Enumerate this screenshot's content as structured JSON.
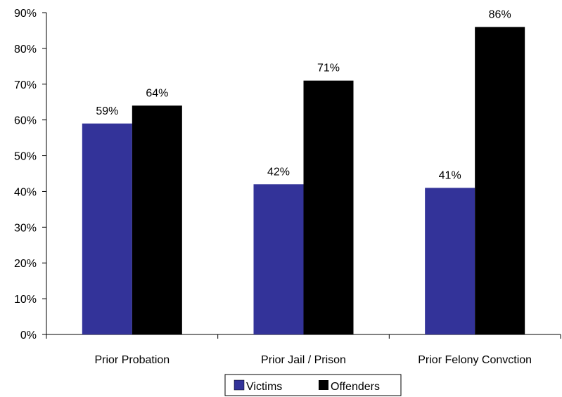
{
  "chart_data": {
    "type": "bar",
    "categories": [
      "Prior Probation",
      "Prior Jail / Prison",
      "Prior Felony Convction"
    ],
    "series": [
      {
        "name": "Victims",
        "values": [
          59,
          42,
          41
        ],
        "labels": [
          "59%",
          "42%",
          "41%"
        ],
        "color": "#333399"
      },
      {
        "name": "Offenders",
        "values": [
          64,
          71,
          86
        ],
        "labels": [
          "64%",
          "71%",
          "86%"
        ],
        "color": "#000000"
      }
    ],
    "ylim": [
      0,
      90
    ],
    "y_ticks": [
      "0%",
      "10%",
      "20%",
      "30%",
      "40%",
      "50%",
      "60%",
      "70%",
      "80%",
      "90%"
    ],
    "grid": false,
    "legend_position": "bottom",
    "title": "",
    "xlabel": "",
    "ylabel": ""
  }
}
